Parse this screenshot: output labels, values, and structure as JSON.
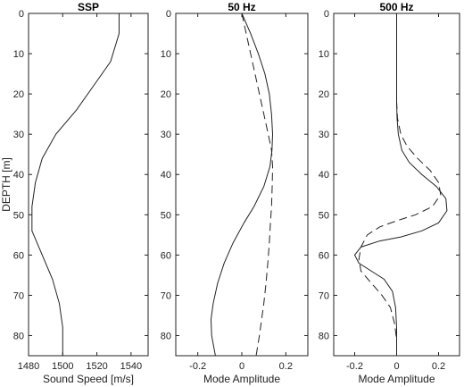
{
  "chart_data": [
    {
      "type": "line",
      "title": "SSP",
      "xlabel": "Sound Speed [m/s]",
      "ylabel": "DEPTH [m]",
      "xlim": [
        1480,
        1550
      ],
      "ylim": [
        85,
        0
      ],
      "y_reversed": true,
      "xticks": [
        1480,
        1500,
        1520,
        1540
      ],
      "yticks": [
        0,
        10,
        20,
        30,
        40,
        50,
        60,
        70,
        80
      ],
      "grid": false,
      "series": [
        {
          "style": "solid",
          "points": [
            [
              1533,
              0
            ],
            [
              1533,
              5
            ],
            [
              1528,
              12
            ],
            [
              1518,
              18
            ],
            [
              1508,
              24
            ],
            [
              1496,
              30
            ],
            [
              1488,
              36
            ],
            [
              1484,
              42
            ],
            [
              1482,
              48
            ],
            [
              1482,
              54
            ],
            [
              1488,
              60
            ],
            [
              1494,
              66
            ],
            [
              1498,
              72
            ],
            [
              1500,
              78
            ],
            [
              1500,
              85
            ]
          ]
        }
      ]
    },
    {
      "type": "line",
      "title": "50 Hz",
      "xlabel": "Mode Amplitude",
      "ylabel": "",
      "xlim": [
        -0.3,
        0.3
      ],
      "ylim": [
        85,
        0
      ],
      "y_reversed": true,
      "xticks": [
        -0.2,
        0,
        0.2
      ],
      "yticks": [
        0,
        10,
        20,
        30,
        40,
        50,
        60,
        70,
        80
      ],
      "grid": false,
      "series": [
        {
          "style": "solid",
          "points": [
            [
              0,
              0
            ],
            [
              0.04,
              5
            ],
            [
              0.075,
              10
            ],
            [
              0.105,
              15
            ],
            [
              0.125,
              20
            ],
            [
              0.135,
              25
            ],
            [
              0.14,
              30
            ],
            [
              0.137,
              34
            ],
            [
              0.128,
              38
            ],
            [
              0.1,
              43
            ],
            [
              0.055,
              48
            ],
            [
              0.01,
              52
            ],
            [
              -0.04,
              57
            ],
            [
              -0.08,
              62
            ],
            [
              -0.11,
              67
            ],
            [
              -0.13,
              72
            ],
            [
              -0.14,
              76
            ],
            [
              -0.137,
              80
            ],
            [
              -0.12,
              85
            ]
          ]
        },
        {
          "style": "dashed",
          "points": [
            [
              0,
              0
            ],
            [
              0.02,
              5
            ],
            [
              0.04,
              10
            ],
            [
              0.06,
              15
            ],
            [
              0.08,
              20
            ],
            [
              0.1,
              25
            ],
            [
              0.12,
              30
            ],
            [
              0.135,
              34
            ],
            [
              0.14,
              38
            ],
            [
              0.138,
              43
            ],
            [
              0.135,
              48
            ],
            [
              0.13,
              52
            ],
            [
              0.125,
              57
            ],
            [
              0.118,
              62
            ],
            [
              0.11,
              67
            ],
            [
              0.1,
              72
            ],
            [
              0.09,
              76
            ],
            [
              0.08,
              80
            ],
            [
              0.065,
              85
            ]
          ]
        }
      ]
    },
    {
      "type": "line",
      "title": "500 Hz",
      "xlabel": "Mode Amplitude",
      "ylabel": "",
      "xlim": [
        -0.3,
        0.3
      ],
      "ylim": [
        85,
        0
      ],
      "y_reversed": true,
      "xticks": [
        -0.2,
        0,
        0.2
      ],
      "yticks": [
        0,
        10,
        20,
        30,
        40,
        50,
        60,
        70,
        80
      ],
      "grid": false,
      "series": [
        {
          "style": "solid",
          "points": [
            [
              0,
              0
            ],
            [
              0,
              22
            ],
            [
              0.002,
              26
            ],
            [
              0.008,
              30
            ],
            [
              0.025,
              34
            ],
            [
              0.06,
              37
            ],
            [
              0.12,
              40
            ],
            [
              0.19,
              43
            ],
            [
              0.235,
              46
            ],
            [
              0.24,
              49
            ],
            [
              0.2,
              52
            ],
            [
              0.12,
              54
            ],
            [
              0.02,
              55.5
            ],
            [
              -0.08,
              56.5
            ],
            [
              -0.17,
              58
            ],
            [
              -0.2,
              60
            ],
            [
              -0.18,
              62
            ],
            [
              -0.12,
              64
            ],
            [
              -0.06,
              66
            ],
            [
              -0.02,
              69
            ],
            [
              -0.005,
              73
            ],
            [
              0,
              78
            ],
            [
              0,
              85
            ]
          ]
        },
        {
          "style": "dashed",
          "points": [
            [
              0,
              0
            ],
            [
              0,
              22
            ],
            [
              0.004,
              26
            ],
            [
              0.02,
              30
            ],
            [
              0.05,
              33
            ],
            [
              0.1,
              36
            ],
            [
              0.16,
              39
            ],
            [
              0.2,
              42
            ],
            [
              0.21,
              45
            ],
            [
              0.17,
              48
            ],
            [
              0.09,
              50
            ],
            [
              0,
              51.5
            ],
            [
              -0.08,
              53
            ],
            [
              -0.14,
              55
            ],
            [
              -0.17,
              58
            ],
            [
              -0.18,
              61
            ],
            [
              -0.17,
              64
            ],
            [
              -0.12,
              67
            ],
            [
              -0.07,
              70
            ],
            [
              -0.03,
              73
            ],
            [
              -0.01,
              77
            ],
            [
              0,
              81
            ],
            [
              0,
              85
            ]
          ]
        }
      ]
    }
  ]
}
